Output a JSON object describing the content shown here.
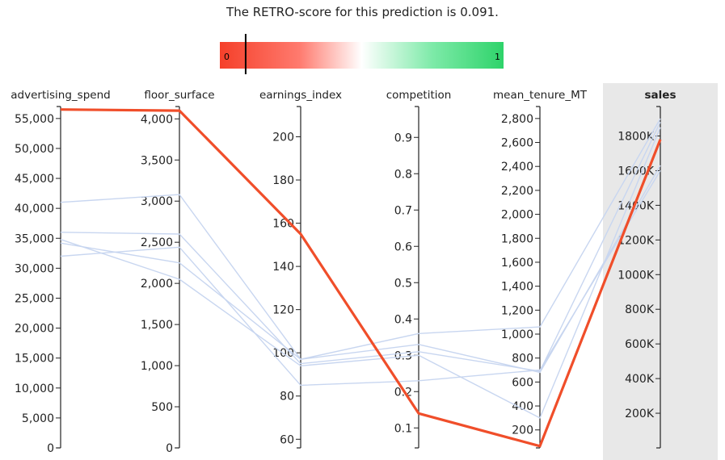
{
  "header": {
    "title": "The RETRO-score for this prediction is 0.091."
  },
  "colorbar": {
    "min_label": "0",
    "max_label": "1",
    "marker_value": 0.091,
    "stops": [
      "#f5402a",
      "#ff7a6e",
      "#ffffff",
      "#7deaa8",
      "#2ed36a"
    ]
  },
  "chart_data": {
    "type": "parallel_coordinates",
    "highlight_color": "#f04e2a",
    "context_color": "#c8d6f0",
    "highlight_axis_bg": "#e8e8e8",
    "axes": [
      {
        "name": "advertising_spend",
        "range": [
          0,
          57000
        ],
        "ticks": [
          0,
          5000,
          10000,
          15000,
          20000,
          25000,
          30000,
          35000,
          40000,
          45000,
          50000,
          55000
        ],
        "tick_labels": [
          "0",
          "5,000",
          "10,000",
          "15,000",
          "20,000",
          "25,000",
          "30,000",
          "35,000",
          "40,000",
          "45,000",
          "50,000",
          "55,000"
        ]
      },
      {
        "name": "floor_surface",
        "range": [
          0,
          4150
        ],
        "ticks": [
          0,
          500,
          1000,
          1500,
          2000,
          2500,
          3000,
          3500,
          4000
        ],
        "tick_labels": [
          "0",
          "500",
          "1,000",
          "1,500",
          "2,000",
          "2,500",
          "3,000",
          "3,500",
          "4,000"
        ]
      },
      {
        "name": "earnings_index",
        "range": [
          56,
          214
        ],
        "ticks": [
          60,
          80,
          100,
          120,
          140,
          160,
          180,
          200
        ],
        "tick_labels": [
          "60",
          "80",
          "100",
          "120",
          "140",
          "160",
          "180",
          "200"
        ]
      },
      {
        "name": "competition",
        "range": [
          0.045,
          0.985
        ],
        "ticks": [
          0.1,
          0.2,
          0.3,
          0.4,
          0.5,
          0.6,
          0.7,
          0.8,
          0.9
        ],
        "tick_labels": [
          "0.1",
          "0.2",
          "0.3",
          "0.4",
          "0.5",
          "0.6",
          "0.7",
          "0.8",
          "0.9"
        ]
      },
      {
        "name": "mean_tenure_MT",
        "range": [
          50,
          2900
        ],
        "ticks": [
          200,
          400,
          600,
          800,
          1000,
          1200,
          1400,
          1600,
          1800,
          2000,
          2200,
          2400,
          2600,
          2800
        ],
        "tick_labels": [
          "200",
          "400",
          "600",
          "800",
          "1,000",
          "1,200",
          "1,400",
          "1,600",
          "1,800",
          "2,000",
          "2,200",
          "2,400",
          "2,600",
          "2,800"
        ]
      },
      {
        "name": "sales",
        "range": [
          0,
          1970000
        ],
        "ticks": [
          200000,
          400000,
          600000,
          800000,
          1000000,
          1200000,
          1400000,
          1600000,
          1800000
        ],
        "tick_labels": [
          "200K",
          "400K",
          "600K",
          "800K",
          "1000K",
          "1200K",
          "1400K",
          "1600K",
          "1800K"
        ],
        "highlighted": true
      }
    ],
    "series": [
      {
        "values": [
          56500,
          4100,
          155,
          0.14,
          65,
          1780000
        ],
        "highlight": true
      },
      {
        "values": [
          41000,
          3080,
          97,
          0.36,
          1060,
          1900000
        ],
        "highlight": false
      },
      {
        "values": [
          36000,
          2600,
          95,
          0.31,
          690,
          1880000
        ],
        "highlight": false
      },
      {
        "values": [
          34800,
          2050,
          94,
          0.3,
          300,
          1850000
        ],
        "highlight": false
      },
      {
        "values": [
          34200,
          2250,
          97,
          0.33,
          680,
          1630000
        ],
        "highlight": false
      },
      {
        "values": [
          32000,
          2440,
          85,
          0.23,
          700,
          1600000
        ],
        "highlight": false
      }
    ]
  }
}
